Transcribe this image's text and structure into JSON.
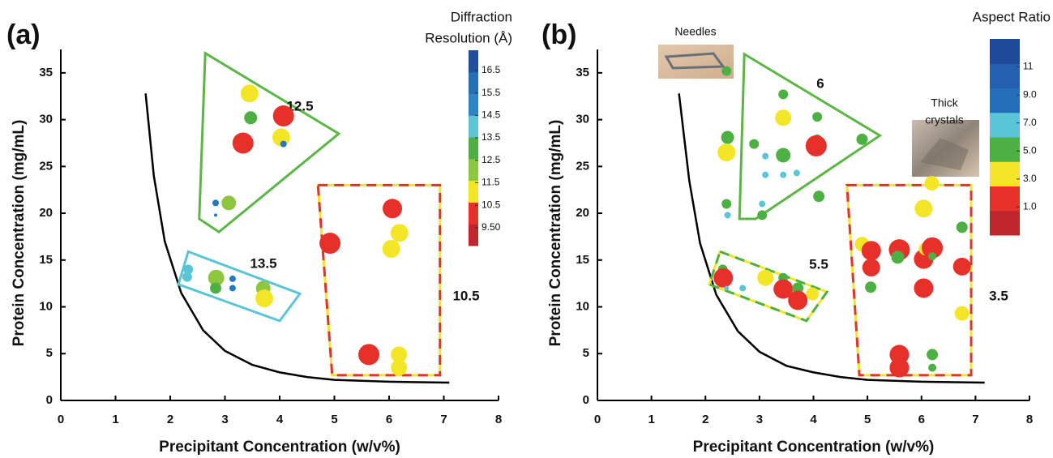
{
  "chart_data": [
    {
      "type": "scatter",
      "panel": "(a)",
      "xlabel": "Precipitant Concentration (w/v%)",
      "ylabel": "Protein Concentration (mg/mL)",
      "xlim": [
        0,
        8
      ],
      "ylim": [
        0,
        37.5
      ],
      "xticks": [
        0,
        1,
        2,
        3,
        4,
        5,
        6,
        7,
        8
      ],
      "yticks": [
        0,
        5,
        10,
        15,
        20,
        25,
        30,
        35
      ],
      "x": [
        3.45,
        3.47,
        4.07,
        4.03,
        4.07,
        3.33,
        2.83,
        2.83,
        3.07,
        2.33,
        2.31,
        2.84,
        2.83,
        3.14,
        3.14,
        3.7,
        3.72,
        4.92,
        6.06,
        6.19,
        6.04,
        5.63,
        6.18,
        6.18
      ],
      "y": [
        32.8,
        30.2,
        30.4,
        28.1,
        27.4,
        27.5,
        21.1,
        19.8,
        21.1,
        14.0,
        13.2,
        13.1,
        12.0,
        13.0,
        12.0,
        12.0,
        10.9,
        16.8,
        20.5,
        17.9,
        16.2,
        4.9,
        4.9,
        3.5
      ],
      "sizes": [
        11,
        8,
        13,
        11,
        4,
        13,
        4,
        2,
        9,
        6,
        6,
        10,
        7,
        4,
        4,
        9,
        11,
        13,
        12,
        11,
        11,
        13,
        10,
        10
      ],
      "colors": [
        "#f2e627",
        "#4db043",
        "#e8302a",
        "#f2e627",
        "#2479c2",
        "#e8302a",
        "#2479c2",
        "#2479c2",
        "#8dc63f",
        "#5bc5d8",
        "#5bc5d8",
        "#8dc63f",
        "#4db043",
        "#2479c2",
        "#2479c2",
        "#8dc63f",
        "#f2e627",
        "#e8302a",
        "#e8302a",
        "#f2e627",
        "#f2e627",
        "#e8302a",
        "#f2e627",
        "#f2e627"
      ],
      "curve": {
        "x": [
          1.55,
          1.7,
          1.9,
          2.2,
          2.6,
          3.0,
          3.5,
          4.0,
          4.5,
          5.0,
          6.0,
          7.1
        ],
        "y": [
          32.8,
          24,
          17,
          11.5,
          7.5,
          5.3,
          3.8,
          3.0,
          2.5,
          2.2,
          2.0,
          1.9
        ]
      },
      "regions": [
        {
          "label": "12.5",
          "colors": [
            "#5cb646"
          ],
          "x": [
            2.64,
            5.08,
            2.89,
            2.53
          ],
          "y": [
            37.1,
            28.5,
            18.0,
            19.4
          ]
        },
        {
          "label": "13.5",
          "colors": [
            "#5bc5d8"
          ],
          "x": [
            2.33,
            4.37,
            4.0,
            2.15
          ],
          "y": [
            15.9,
            11.4,
            8.5,
            12.4
          ]
        },
        {
          "label": "10.5",
          "colors": [
            "#e8302a",
            "#f2e627"
          ],
          "x": [
            4.7,
            6.93,
            6.93,
            4.96
          ],
          "y": [
            23.0,
            23.0,
            2.7,
            2.7
          ]
        }
      ],
      "colorbar": {
        "title_lines": [
          "Diffraction",
          "Resolution (Å)"
        ],
        "clim": [
          8.7,
          17.4
        ],
        "colors": [
          "#c0272d",
          "#e8302a",
          "#f2e627",
          "#8dc63f",
          "#4db043",
          "#5bc5d8",
          "#2b86c8",
          "#2370b8",
          "#1f4fa0"
        ],
        "ticks": [
          {
            "value": 9.5,
            "label": "9.50"
          },
          10.5,
          11.5,
          12.5,
          13.5,
          14.5,
          15.5,
          16.5
        ]
      }
    },
    {
      "type": "scatter",
      "panel": "(b)",
      "xlabel": "Precipitant Concentration (w/v%)",
      "ylabel": "Protein Concentration (mg/mL)",
      "xlim": [
        0,
        8
      ],
      "ylim": [
        0,
        37.5
      ],
      "xticks": [
        0,
        1,
        2,
        3,
        4,
        5,
        6,
        7,
        8
      ],
      "yticks": [
        0,
        5,
        10,
        15,
        20,
        25,
        30,
        35
      ],
      "x": [
        2.39,
        3.44,
        3.44,
        4.07,
        2.41,
        2.9,
        2.39,
        3.44,
        3.11,
        4.07,
        4.05,
        4.9,
        3.11,
        3.44,
        3.69,
        4.1,
        2.39,
        3.05,
        2.41,
        3.05,
        2.32,
        2.33,
        2.39,
        2.69,
        3.11,
        3.44,
        3.44,
        3.71,
        3.71,
        3.98,
        4.9,
        5.07,
        5.07,
        5.06,
        5.59,
        5.56,
        6.04,
        6.04,
        6.04,
        6.19,
        6.07,
        6.2,
        6.2,
        6.75,
        6.75,
        6.75,
        5.59,
        5.59,
        6.2,
        6.2
      ],
      "y": [
        35.2,
        32.7,
        30.2,
        30.3,
        28.1,
        27.4,
        26.5,
        26.2,
        26.1,
        27.9,
        27.2,
        27.9,
        24.1,
        24.1,
        24.3,
        21.8,
        21.0,
        21.0,
        19.8,
        19.8,
        14.0,
        13.1,
        12.0,
        12.0,
        13.1,
        13.1,
        11.9,
        12.0,
        10.7,
        11.4,
        16.7,
        16.0,
        14.2,
        12.1,
        16.1,
        15.3,
        15.1,
        12.0,
        20.5,
        23.2,
        16.2,
        16.3,
        15.4,
        18.5,
        14.3,
        9.3,
        4.9,
        3.5,
        4.9,
        3.5
      ],
      "sizes": [
        6,
        6,
        10,
        6,
        8,
        6,
        11,
        9,
        4,
        6,
        13,
        7,
        4,
        4,
        4,
        7,
        6,
        4,
        4,
        6,
        6,
        12,
        3,
        4,
        10,
        6,
        12,
        7,
        12,
        8,
        9,
        12,
        11,
        7,
        13,
        8,
        12,
        12,
        11,
        9,
        8,
        13,
        5,
        7,
        11,
        9,
        12,
        12,
        7,
        5
      ],
      "colors": [
        "#4db043",
        "#4db043",
        "#f2e627",
        "#4db043",
        "#4db043",
        "#4db043",
        "#f2e627",
        "#4db043",
        "#5bc5d8",
        "#4db043",
        "#e8302a",
        "#4db043",
        "#5bc5d8",
        "#5bc5d8",
        "#5bc5d8",
        "#4db043",
        "#4db043",
        "#5bc5d8",
        "#5bc5d8",
        "#4db043",
        "#4db043",
        "#e8302a",
        "#5bc5d8",
        "#5bc5d8",
        "#f2e627",
        "#4db043",
        "#e8302a",
        "#4db043",
        "#e8302a",
        "#f2e627",
        "#f2e627",
        "#e8302a",
        "#e8302a",
        "#4db043",
        "#e8302a",
        "#4db043",
        "#e8302a",
        "#e8302a",
        "#f2e627",
        "#f2e627",
        "#f2e627",
        "#e8302a",
        "#4db043",
        "#4db043",
        "#e8302a",
        "#f2e627",
        "#e8302a",
        "#e8302a",
        "#4db043",
        "#4db043"
      ],
      "curve": {
        "x": [
          1.51,
          1.7,
          1.9,
          2.2,
          2.6,
          3.0,
          3.5,
          4.0,
          4.5,
          5.0,
          6.0,
          7.17
        ],
        "y": [
          32.8,
          23.5,
          16.8,
          11.3,
          7.4,
          5.2,
          3.7,
          3.0,
          2.5,
          2.2,
          2.0,
          1.9
        ]
      },
      "regions": [
        {
          "label": "6",
          "colors": [
            "#5cb646"
          ],
          "x": [
            2.72,
            5.23,
            2.93,
            2.63
          ],
          "y": [
            37.0,
            28.3,
            19.4,
            19.4
          ]
        },
        {
          "label": "5.5",
          "colors": [
            "#4db043",
            "#f2e627"
          ],
          "x": [
            2.27,
            4.25,
            3.87,
            2.07
          ],
          "y": [
            15.9,
            11.6,
            8.5,
            12.4
          ]
        },
        {
          "label": "3.5",
          "colors": [
            "#e8302a",
            "#f2e627"
          ],
          "x": [
            4.62,
            6.92,
            6.92,
            4.85
          ],
          "y": [
            23.0,
            23.0,
            2.7,
            2.7
          ]
        }
      ],
      "insets": [
        {
          "label_lines": [
            "Needles"
          ]
        },
        {
          "label_lines": [
            "Thick",
            "crystals"
          ]
        }
      ],
      "colorbar": {
        "title_lines": [
          "Aspect Ratio"
        ],
        "clim": [
          -1,
          13
        ],
        "colors": [
          "#c0272d",
          "#e8302a",
          "#f2e627",
          "#4db043",
          "#5bc5d8",
          "#2370b8",
          "#2460ae",
          "#1f4a9a"
        ],
        "ticks": [
          {
            "value": 1,
            "label": "1.0"
          },
          {
            "value": 3,
            "label": "3.0"
          },
          {
            "value": 5,
            "label": "5.0"
          },
          {
            "value": 7,
            "label": "7.0"
          },
          {
            "value": 9,
            "label": "9.0"
          },
          11
        ]
      }
    }
  ]
}
